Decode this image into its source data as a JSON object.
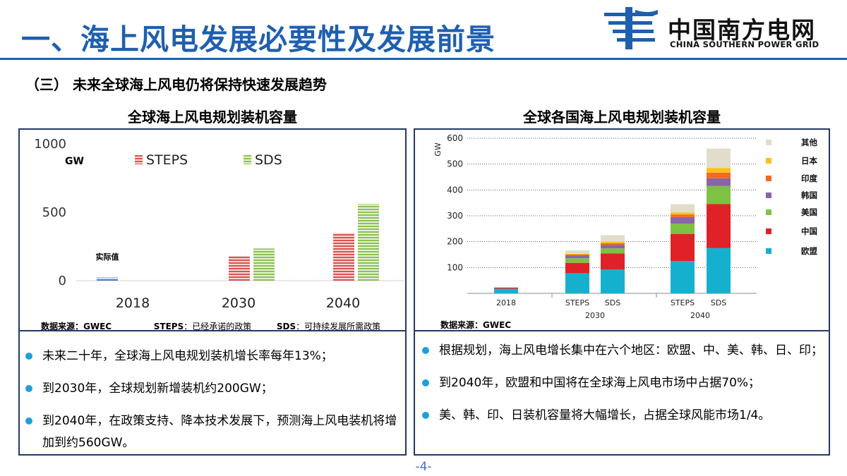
{
  "header": {
    "title": "一、海上风电发展必要性及发展前景",
    "logo_cn": "中国南方电网",
    "logo_en": "CHINA SOUTHERN POWER GRID",
    "accent_color": "#1f5fae"
  },
  "subtitle": "（三） 未来全球海上风电仍将保持快速发展趋势",
  "left_panel": {
    "title": "全球海上风电规划装机容量",
    "footnote": {
      "source": "数据来源：GWEC",
      "steps_key": "STEPS",
      "steps_desc": "：已经承诺的政策",
      "sds_key": "SDS",
      "sds_desc": "：可持续发展所需政策"
    },
    "bullets": [
      "未来二十年，全球海上风电规划装机增长率每年13%；",
      "到2030年，全球规划新增装机约200GW；",
      "到2040年，在政策支持、降本技术发展下，预测海上风电装机将增加到约560GW。"
    ]
  },
  "right_panel": {
    "title": "全球各国海上风电规划装机容量",
    "footnote": "数据来源：GWEC",
    "bullets": [
      "根据规划，海上风电增长集中在六个地区：欧盟、中、美、韩、日、印；",
      "到2040年，欧盟和中国将在全球海上风电市场中占据70%；",
      "美、韩、印、日装机容量将大幅增长，占据全球风能市场1/4。"
    ]
  },
  "page_number": "-4-",
  "chart_data": [
    {
      "type": "bar",
      "title": "全球海上风电规划装机容量",
      "ylabel": "GW",
      "ylim": [
        0,
        1000
      ],
      "yticks": [
        0,
        500,
        1000
      ],
      "categories": [
        "2018",
        "2030",
        "2040"
      ],
      "actual": {
        "name": "实际值",
        "values": [
          23,
          null,
          null
        ],
        "color": "#4a7fc8"
      },
      "series": [
        {
          "name": "STEPS",
          "values": [
            null,
            180,
            350
          ],
          "color": "#d9534f"
        },
        {
          "name": "SDS",
          "values": [
            null,
            235,
            560
          ],
          "color": "#8cc152"
        }
      ],
      "legend": "top",
      "grid": false
    },
    {
      "type": "bar",
      "stacked": true,
      "title": "全球各国海上风电规划装机容量",
      "ylabel": "GW",
      "ylim": [
        0,
        600
      ],
      "yticks": [
        0,
        100,
        200,
        300,
        400,
        500,
        600
      ],
      "ytick_labels": [
        "",
        "100",
        "200",
        "300",
        "400",
        "500",
        "600"
      ],
      "bars": [
        {
          "label": "2018",
          "group": "",
          "values": [
            18,
            4,
            0,
            0,
            0,
            0,
            3
          ]
        },
        {
          "label": "STEPS",
          "group": "2030",
          "values": [
            78,
            40,
            18,
            10,
            4,
            3,
            13
          ]
        },
        {
          "label": "SDS",
          "group": "2030",
          "values": [
            92,
            62,
            20,
            14,
            6,
            6,
            25
          ]
        },
        {
          "label": "STEPS",
          "group": "2040",
          "values": [
            125,
            105,
            40,
            25,
            10,
            8,
            32
          ]
        },
        {
          "label": "SDS",
          "group": "2040",
          "values": [
            175,
            170,
            70,
            30,
            22,
            18,
            75
          ]
        }
      ],
      "groups": [
        "2030",
        "2040"
      ],
      "series_names": [
        "欧盟",
        "中国",
        "美国",
        "韩国",
        "印度",
        "日本",
        "其他"
      ],
      "colors": [
        "#16b0cf",
        "#e02127",
        "#7dc242",
        "#8a64a8",
        "#f26b21",
        "#fbc01a",
        "#e2dccb"
      ],
      "legend": "right",
      "grid": true
    }
  ]
}
